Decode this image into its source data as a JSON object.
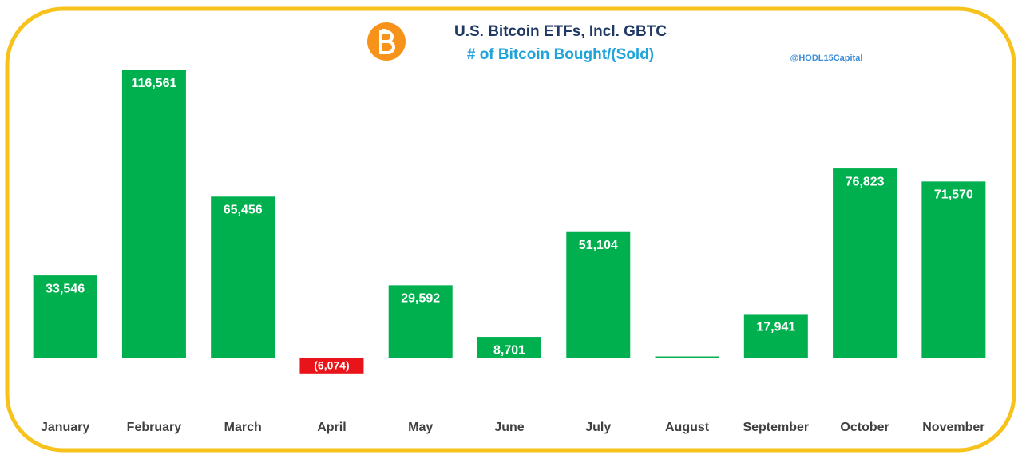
{
  "chart_data": {
    "type": "bar",
    "title": "U.S. Bitcoin ETFs, Incl. GBTC",
    "subtitle": "# of Bitcoin Bought/(Sold)",
    "annotation": "@HODL15Capital",
    "categories": [
      "January",
      "February",
      "March",
      "April",
      "May",
      "June",
      "July",
      "August",
      "September",
      "October",
      "November"
    ],
    "values": [
      33546,
      116561,
      65456,
      -6074,
      29592,
      8701,
      51104,
      800,
      17941,
      76823,
      71570
    ],
    "value_labels": [
      "33,546",
      "116,561",
      "65,456",
      "(6,074)",
      "29,592",
      "8,701",
      "51,104",
      null,
      "17,941",
      "76,823",
      "71,570"
    ],
    "color": "#00b04f",
    "negative_color": "#e8141a"
  }
}
